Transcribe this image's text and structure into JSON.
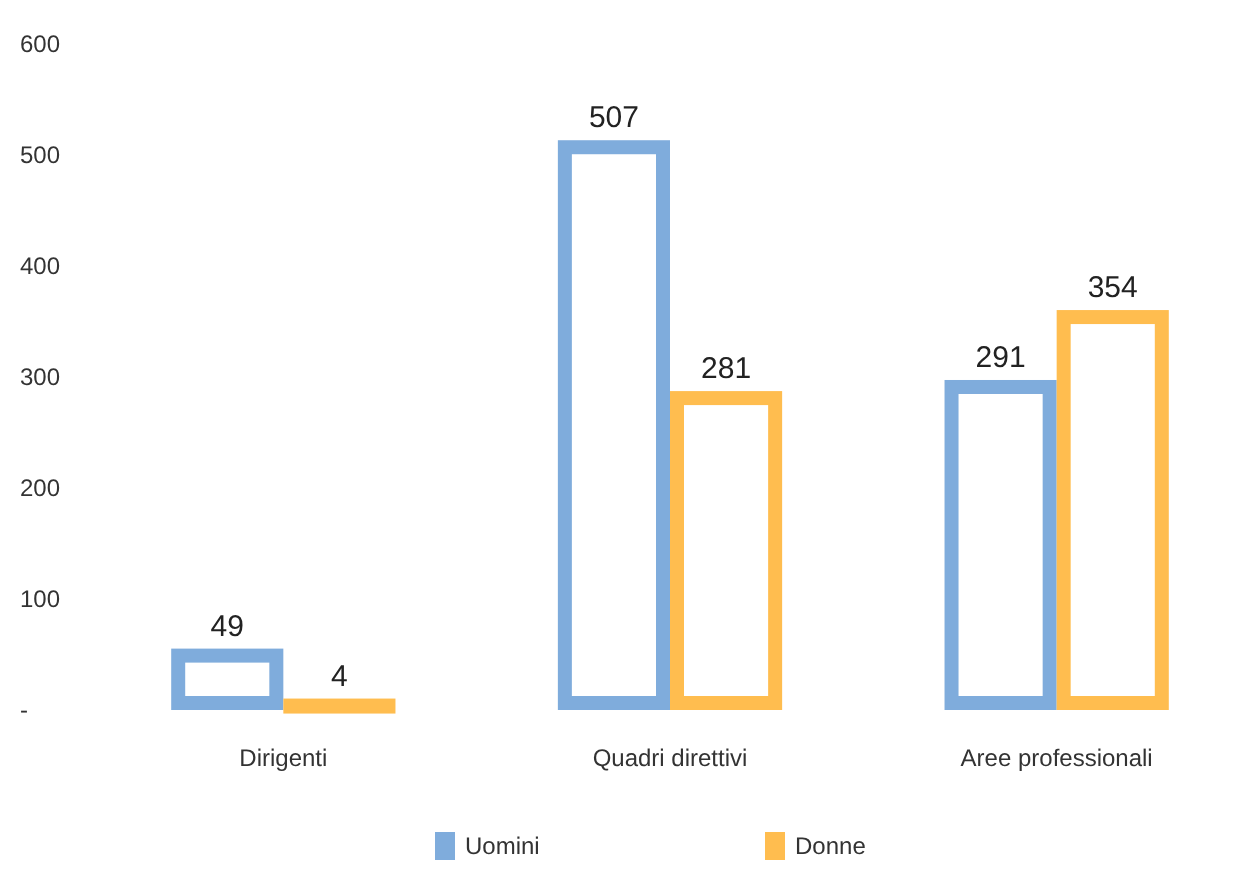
{
  "chart_data": {
    "type": "bar",
    "categories": [
      "Dirigenti",
      "Quadri direttivi",
      "Aree professionali"
    ],
    "series": [
      {
        "name": "Uomini",
        "color": "#7facdc",
        "values": [
          49,
          507,
          291
        ]
      },
      {
        "name": "Donne",
        "color": "#ffbd4f",
        "values": [
          4,
          281,
          354
        ]
      }
    ],
    "ylim": [
      0,
      600
    ],
    "yticks": [
      {
        "value": 0,
        "label": "-"
      },
      100,
      200,
      300,
      400,
      500,
      600
    ],
    "data_labels": true,
    "legend": "bottom",
    "grid": false
  }
}
